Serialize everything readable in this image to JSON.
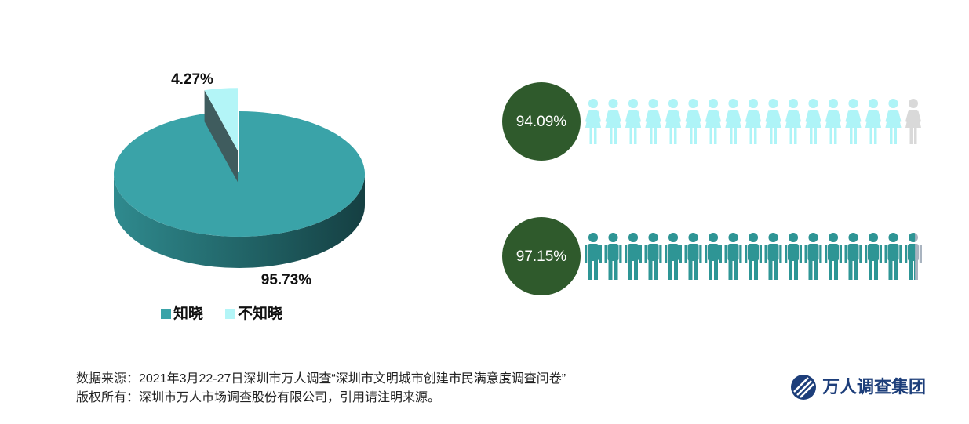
{
  "chart_data": [
    {
      "type": "pie",
      "categories": [
        "知晓",
        "不知晓"
      ],
      "values": [
        95.73,
        4.27
      ],
      "value_labels": [
        "95.73%",
        "4.27%"
      ],
      "colors": [
        "#3aa3a8",
        "#b3f5f7"
      ],
      "legend": "bottom"
    },
    {
      "type": "pictograph",
      "icon": "female",
      "values": [
        94.09
      ],
      "value_labels": [
        "94.09%"
      ],
      "color": "#aef4f7",
      "rest_color": "#d9d9d9"
    },
    {
      "type": "pictograph",
      "icon": "male",
      "values": [
        97.15
      ],
      "value_labels": [
        "97.15%"
      ],
      "color": "#2e9595",
      "rest_color": "#a9b4c0"
    }
  ],
  "footer": {
    "source": "数据来源：2021年3月22-27日深圳市万人调查“深圳市文明城市创建市民满意度调查问卷”",
    "copyright": "版权所有：深圳市万人市场调查股份有限公司，引用请注明来源。"
  },
  "logo": {
    "text": "万人调查集团"
  }
}
